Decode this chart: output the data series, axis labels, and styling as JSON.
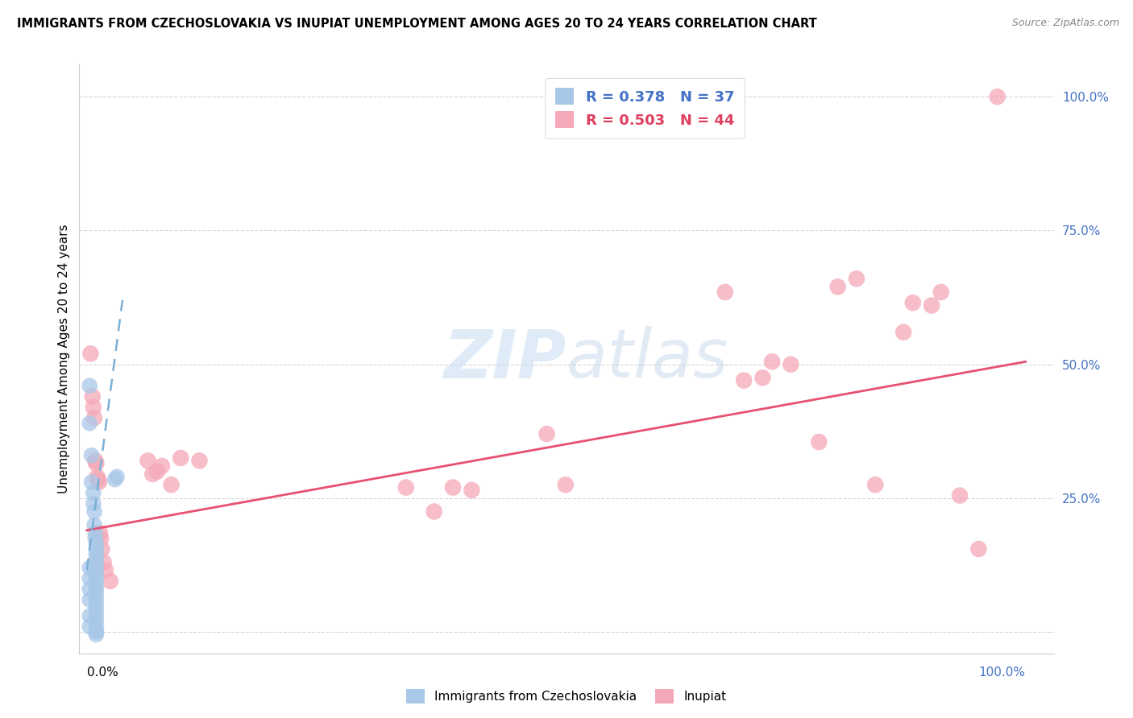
{
  "title": "IMMIGRANTS FROM CZECHOSLOVAKIA VS INUPIAT UNEMPLOYMENT AMONG AGES 20 TO 24 YEARS CORRELATION CHART",
  "source": "Source: ZipAtlas.com",
  "ylabel": "Unemployment Among Ages 20 to 24 years",
  "blue_label": "Immigrants from Czechoslovakia",
  "pink_label": "Inupiat",
  "blue_R": 0.378,
  "blue_N": 37,
  "pink_R": 0.503,
  "pink_N": 44,
  "blue_color": "#a8c8e8",
  "pink_color": "#f5a8b8",
  "blue_line_color": "#7ab0d8",
  "pink_line_color": "#e85070",
  "blue_scatter": [
    [
      0.003,
      0.46
    ],
    [
      0.003,
      0.39
    ],
    [
      0.005,
      0.33
    ],
    [
      0.005,
      0.28
    ],
    [
      0.007,
      0.26
    ],
    [
      0.007,
      0.24
    ],
    [
      0.008,
      0.225
    ],
    [
      0.008,
      0.2
    ],
    [
      0.009,
      0.185
    ],
    [
      0.009,
      0.175
    ],
    [
      0.01,
      0.165
    ],
    [
      0.01,
      0.155
    ],
    [
      0.01,
      0.145
    ],
    [
      0.01,
      0.135
    ],
    [
      0.01,
      0.125
    ],
    [
      0.01,
      0.115
    ],
    [
      0.01,
      0.105
    ],
    [
      0.01,
      0.095
    ],
    [
      0.01,
      0.085
    ],
    [
      0.01,
      0.075
    ],
    [
      0.01,
      0.065
    ],
    [
      0.01,
      0.055
    ],
    [
      0.01,
      0.045
    ],
    [
      0.01,
      0.035
    ],
    [
      0.01,
      0.025
    ],
    [
      0.01,
      0.015
    ],
    [
      0.01,
      0.005
    ],
    [
      0.01,
      0.0
    ],
    [
      0.01,
      -0.005
    ],
    [
      0.03,
      0.285
    ],
    [
      0.032,
      0.29
    ],
    [
      0.003,
      0.12
    ],
    [
      0.003,
      0.1
    ],
    [
      0.003,
      0.08
    ],
    [
      0.003,
      0.06
    ],
    [
      0.003,
      0.03
    ],
    [
      0.003,
      0.01
    ]
  ],
  "pink_scatter": [
    [
      0.004,
      0.52
    ],
    [
      0.006,
      0.44
    ],
    [
      0.007,
      0.42
    ],
    [
      0.008,
      0.4
    ],
    [
      0.009,
      0.32
    ],
    [
      0.01,
      0.315
    ],
    [
      0.011,
      0.29
    ],
    [
      0.012,
      0.285
    ],
    [
      0.013,
      0.28
    ],
    [
      0.014,
      0.185
    ],
    [
      0.015,
      0.175
    ],
    [
      0.016,
      0.155
    ],
    [
      0.018,
      0.13
    ],
    [
      0.02,
      0.115
    ],
    [
      0.025,
      0.095
    ],
    [
      0.065,
      0.32
    ],
    [
      0.07,
      0.295
    ],
    [
      0.075,
      0.3
    ],
    [
      0.08,
      0.31
    ],
    [
      0.09,
      0.275
    ],
    [
      0.1,
      0.325
    ],
    [
      0.12,
      0.32
    ],
    [
      0.34,
      0.27
    ],
    [
      0.37,
      0.225
    ],
    [
      0.39,
      0.27
    ],
    [
      0.41,
      0.265
    ],
    [
      0.49,
      0.37
    ],
    [
      0.51,
      0.275
    ],
    [
      0.68,
      0.635
    ],
    [
      0.7,
      0.47
    ],
    [
      0.72,
      0.475
    ],
    [
      0.73,
      0.505
    ],
    [
      0.75,
      0.5
    ],
    [
      0.78,
      0.355
    ],
    [
      0.8,
      0.645
    ],
    [
      0.82,
      0.66
    ],
    [
      0.84,
      0.275
    ],
    [
      0.87,
      0.56
    ],
    [
      0.88,
      0.615
    ],
    [
      0.9,
      0.61
    ],
    [
      0.91,
      0.635
    ],
    [
      0.93,
      0.255
    ],
    [
      0.95,
      0.155
    ],
    [
      0.97,
      1.0
    ]
  ],
  "blue_trendline_x": [
    0.0,
    0.038
  ],
  "blue_trendline_y": [
    0.115,
    0.62
  ],
  "pink_trendline_x": [
    0.0,
    1.0
  ],
  "pink_trendline_y": [
    0.19,
    0.505
  ],
  "ytick_values": [
    0.0,
    0.25,
    0.5,
    0.75,
    1.0
  ],
  "right_ytick_labels": [
    "100.0%",
    "75.0%",
    "50.0%",
    "25.0%"
  ],
  "right_ytick_values": [
    1.0,
    0.75,
    0.5,
    0.25
  ],
  "xmin": -0.008,
  "xmax": 1.03,
  "ymin": -0.04,
  "ymax": 1.06
}
